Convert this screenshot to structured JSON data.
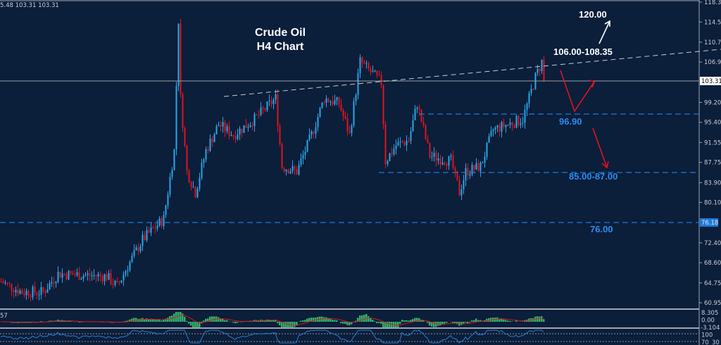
{
  "header": {
    "ohlc_text": "5.48 103.31 103.31"
  },
  "chart_data": {
    "type": "candlestick",
    "title": "Crude Oil",
    "subtitle": "H4 Chart",
    "ylim": [
      60.95,
      118.35
    ],
    "y_ticks": [
      "118.35",
      "114.55",
      "110.70",
      "106.90",
      "99.20",
      "95.40",
      "91.55",
      "87.75",
      "83.90",
      "80.10",
      "72.40",
      "68.60",
      "64.75",
      "60.95"
    ],
    "current_price_label": "103.31",
    "level_label": "76.18",
    "close_path": [
      [
        0,
        65
      ],
      [
        10,
        63
      ],
      [
        20,
        63
      ],
      [
        27,
        66.5
      ],
      [
        50,
        66
      ],
      [
        55,
        64
      ],
      [
        60,
        68
      ],
      [
        67,
        73
      ],
      [
        77,
        77
      ],
      [
        82,
        90
      ],
      [
        84,
        115
      ],
      [
        85,
        100
      ],
      [
        88,
        86
      ],
      [
        92,
        82
      ],
      [
        97,
        90
      ],
      [
        103,
        95
      ],
      [
        110,
        93
      ],
      [
        120,
        96
      ],
      [
        130,
        100
      ],
      [
        133,
        87
      ],
      [
        140,
        86
      ],
      [
        147,
        93
      ],
      [
        153,
        100
      ],
      [
        160,
        99
      ],
      [
        165,
        93
      ],
      [
        170,
        107
      ],
      [
        180,
        103
      ],
      [
        182,
        88
      ],
      [
        187,
        91
      ],
      [
        193,
        92
      ],
      [
        197,
        99
      ],
      [
        203,
        89
      ],
      [
        213,
        88
      ],
      [
        217,
        82
      ],
      [
        220,
        86
      ],
      [
        227,
        87
      ],
      [
        233,
        94
      ],
      [
        240,
        95
      ],
      [
        247,
        96
      ],
      [
        253,
        104
      ],
      [
        256,
        107
      ],
      [
        257,
        103.31
      ]
    ],
    "colors": {
      "up": "#29a8e8",
      "down": "#e0141e",
      "background": "#0b1e3a",
      "level": "#1e7ad6"
    },
    "annotations": {
      "target_high": "120.00",
      "resistance": "106.00-108.35",
      "support_1": "96.90",
      "support_2": "85.00-87.00",
      "support_3": "76.00"
    },
    "indicator_1": {
      "label": "57",
      "ticks": [
        "8.305",
        "0.00",
        "-3.104"
      ]
    },
    "indicator_2": {
      "ticks": [
        "100",
        "70",
        "30"
      ]
    }
  }
}
